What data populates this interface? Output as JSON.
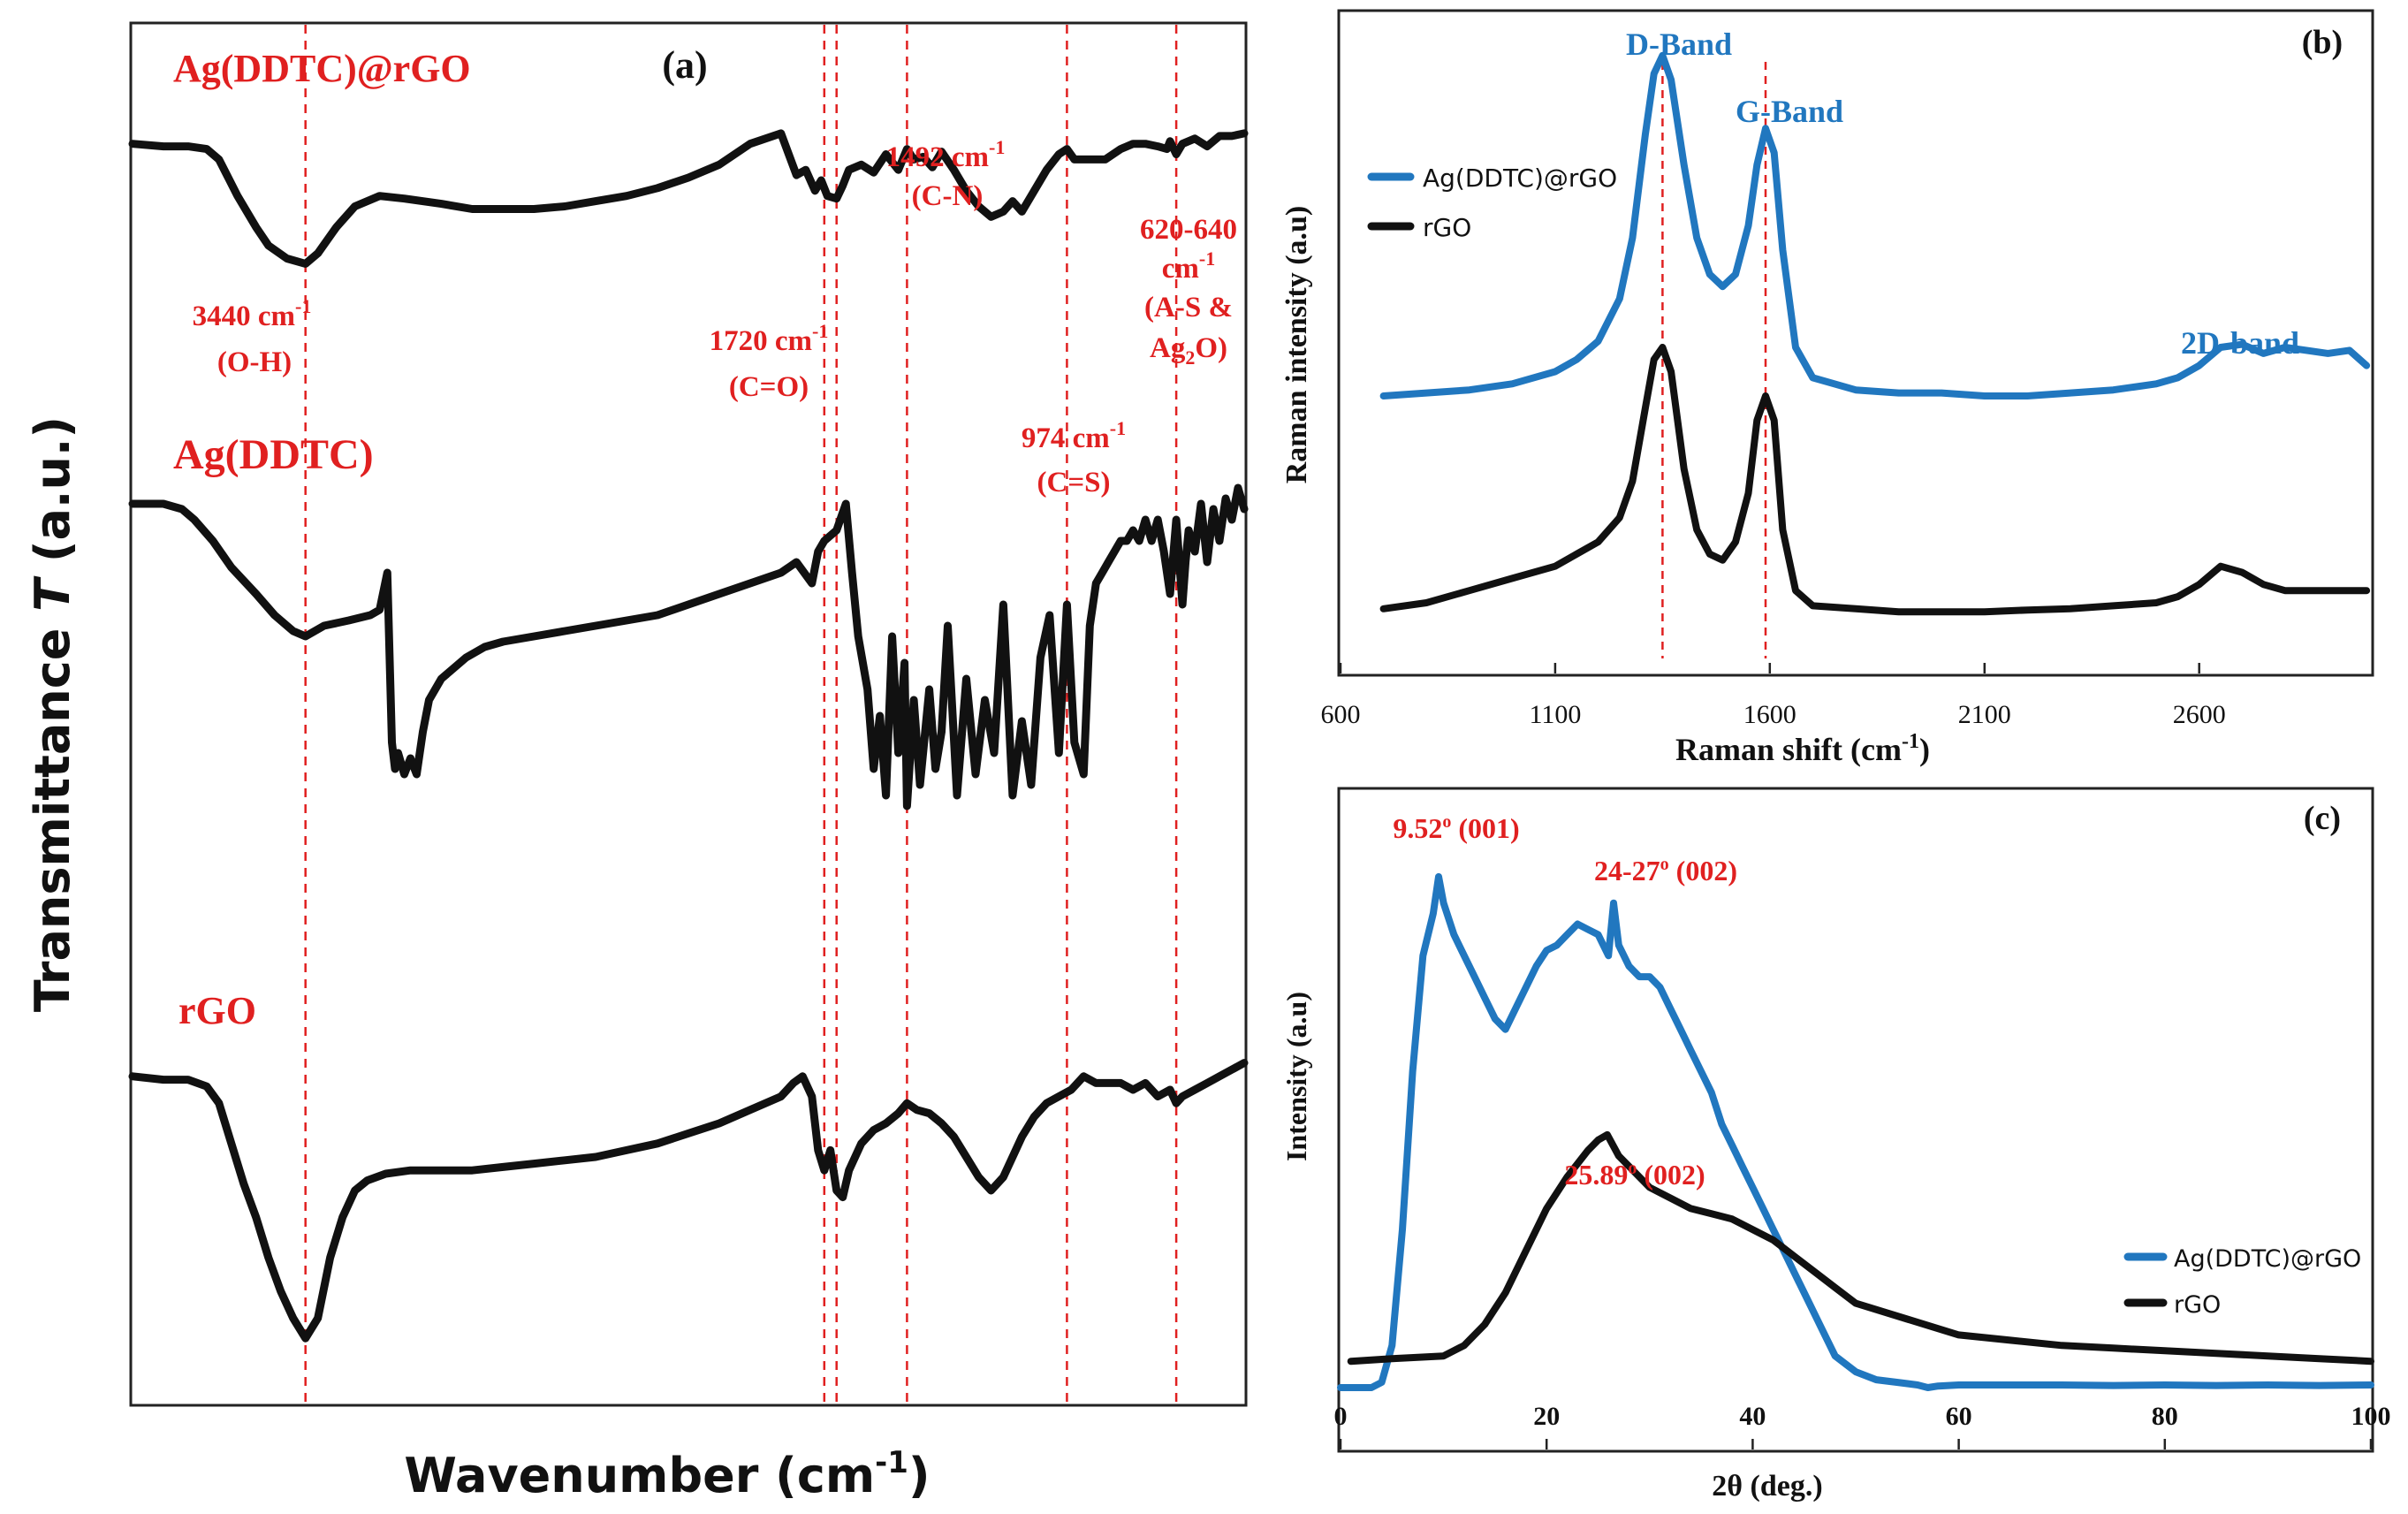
{
  "colors": {
    "blue": "#2177bf",
    "black": "#111111",
    "red": "#e02020",
    "axis": "#222222"
  },
  "chart_data": [
    {
      "id": "a",
      "type": "line",
      "panel_label": "(a)",
      "title": "",
      "xlabel": "Wavenumber (cm",
      "xlabel_sup": "-1",
      "xlabel_end": ")",
      "ylabel": "Transmittance ",
      "ylabel_italic": "T",
      "ylabel_end": " (a.u.)",
      "x_range": [
        4000,
        400
      ],
      "x_ticks_visible": false,
      "series": [
        {
          "name": "Ag(DDTC)@rGO",
          "color": "#111111",
          "x": [
            4000,
            3900,
            3820,
            3760,
            3720,
            3660,
            3600,
            3560,
            3500,
            3440,
            3400,
            3340,
            3280,
            3200,
            3120,
            3000,
            2900,
            2800,
            2700,
            2600,
            2500,
            2400,
            2300,
            2200,
            2100,
            2000,
            1900,
            1850,
            1820,
            1790,
            1770,
            1750,
            1720,
            1700,
            1680,
            1640,
            1600,
            1560,
            1520,
            1492,
            1470,
            1440,
            1410,
            1380,
            1340,
            1300,
            1260,
            1220,
            1180,
            1150,
            1120,
            1080,
            1040,
            1000,
            974,
            950,
            900,
            850,
            800,
            760,
            720,
            680,
            650,
            640,
            620,
            600,
            560,
            520,
            480,
            440,
            400
          ],
          "y": [
            94,
            93,
            93,
            92,
            88,
            74,
            62,
            55,
            50,
            48,
            52,
            62,
            70,
            74,
            73,
            71,
            69,
            69,
            69,
            70,
            72,
            74,
            77,
            81,
            86,
            94,
            98,
            82,
            84,
            76,
            80,
            74,
            73,
            78,
            84,
            86,
            83,
            90,
            84,
            92,
            88,
            89,
            85,
            91,
            84,
            76,
            70,
            66,
            68,
            72,
            68,
            76,
            84,
            90,
            92,
            88,
            88,
            88,
            92,
            94,
            94,
            93,
            92,
            95,
            90,
            94,
            96,
            93,
            97,
            97,
            98
          ]
        },
        {
          "name": "Ag(DDTC)",
          "color": "#111111",
          "x": [
            4000,
            3900,
            3840,
            3800,
            3740,
            3680,
            3600,
            3540,
            3480,
            3440,
            3380,
            3300,
            3230,
            3200,
            3175,
            3160,
            3150,
            3140,
            3120,
            3100,
            3080,
            3060,
            3040,
            3000,
            2960,
            2920,
            2860,
            2800,
            2700,
            2600,
            2500,
            2400,
            2300,
            2200,
            2100,
            2000,
            1900,
            1850,
            1800,
            1780,
            1760,
            1720,
            1690,
            1670,
            1650,
            1620,
            1600,
            1580,
            1560,
            1540,
            1520,
            1500,
            1492,
            1470,
            1450,
            1420,
            1400,
            1380,
            1360,
            1330,
            1300,
            1270,
            1240,
            1210,
            1180,
            1150,
            1120,
            1090,
            1060,
            1030,
            1000,
            974,
            950,
            920,
            900,
            880,
            860,
            840,
            820,
            800,
            780,
            760,
            740,
            720,
            700,
            680,
            660,
            640,
            620,
            600,
            590,
            580,
            560,
            540,
            520,
            500,
            480,
            460,
            440,
            420,
            400
          ],
          "y": [
            95,
            95,
            94,
            92,
            88,
            83,
            78,
            74,
            71,
            70,
            72,
            73,
            74,
            75,
            82,
            50,
            45,
            48,
            44,
            47,
            44,
            52,
            58,
            62,
            64,
            66,
            68,
            69,
            70,
            71,
            72,
            73,
            74,
            76,
            78,
            80,
            82,
            84,
            80,
            86,
            88,
            90,
            95,
            82,
            70,
            60,
            45,
            55,
            40,
            70,
            48,
            65,
            38,
            58,
            42,
            60,
            45,
            52,
            72,
            40,
            62,
            44,
            58,
            48,
            76,
            40,
            54,
            42,
            66,
            74,
            48,
            76,
            50,
            44,
            72,
            80,
            82,
            84,
            86,
            88,
            88,
            90,
            88,
            92,
            88,
            92,
            86,
            78,
            92,
            76,
            84,
            90,
            86,
            95,
            84,
            94,
            88,
            96,
            92,
            98,
            94
          ]
        },
        {
          "name": "rGO",
          "color": "#111111",
          "x": [
            4000,
            3900,
            3820,
            3760,
            3720,
            3680,
            3640,
            3600,
            3560,
            3520,
            3480,
            3440,
            3400,
            3360,
            3320,
            3280,
            3240,
            3180,
            3100,
            3000,
            2900,
            2800,
            2700,
            2600,
            2500,
            2400,
            2300,
            2200,
            2100,
            2000,
            1900,
            1860,
            1830,
            1800,
            1780,
            1760,
            1740,
            1720,
            1700,
            1680,
            1660,
            1640,
            1600,
            1560,
            1520,
            1492,
            1460,
            1420,
            1380,
            1340,
            1300,
            1260,
            1220,
            1180,
            1150,
            1120,
            1080,
            1040,
            1000,
            960,
            920,
            880,
            840,
            800,
            760,
            720,
            680,
            640,
            620,
            600,
            560,
            520,
            480,
            440,
            400
          ],
          "y": [
            94,
            93,
            93,
            91,
            86,
            74,
            62,
            52,
            40,
            30,
            22,
            16,
            22,
            40,
            52,
            60,
            63,
            65,
            66,
            66,
            66,
            67,
            68,
            69,
            70,
            72,
            74,
            77,
            80,
            84,
            88,
            92,
            94,
            88,
            72,
            66,
            72,
            60,
            58,
            66,
            70,
            74,
            78,
            80,
            83,
            86,
            84,
            83,
            80,
            76,
            70,
            64,
            60,
            64,
            70,
            76,
            82,
            86,
            88,
            90,
            94,
            92,
            92,
            92,
            90,
            92,
            88,
            90,
            86,
            88,
            90,
            92,
            94,
            96,
            98
          ]
        }
      ],
      "series_labels": [
        "Ag(DDTC)@rGO",
        "Ag(DDTC)",
        "rGO"
      ],
      "ref_lines_x": [
        3440,
        1760,
        1720,
        1492,
        974,
        620
      ],
      "annotations": [
        {
          "text": "1492 cm",
          "sup": "-1",
          "text2": "(C-N)"
        },
        {
          "text": "3440 cm",
          "sup": "-1",
          "text2": "(O-H)"
        },
        {
          "text": "1720 cm",
          "sup": "-1",
          "text2": "(C=O)"
        },
        {
          "text": "620-640",
          "text2": "cm",
          "sup": "-1",
          "text3": "(A-S &",
          "text4": "Ag",
          "sub": "2",
          "text4b": "O)"
        },
        {
          "text": "974 cm",
          "sup": "-1",
          "text2": "(C=S)"
        }
      ]
    },
    {
      "id": "b",
      "type": "line",
      "panel_label": "(b)",
      "xlabel": "Raman shift (cm",
      "xlabel_sup": "-1",
      "xlabel_end": ")",
      "ylabel": "Raman intensity (a.u)",
      "x_range": [
        600,
        3000
      ],
      "x_ticks": [
        600,
        1100,
        1600,
        2100,
        2600
      ],
      "y_range": [
        0,
        100
      ],
      "legend": {
        "placement": "top-left",
        "entries": [
          "Ag(DDTC)@rGO",
          "rGO"
        ]
      },
      "ref_lines_x": [
        1350,
        1590
      ],
      "series": [
        {
          "name": "Ag(DDTC)@rGO",
          "color": "#2177bf",
          "x": [
            700,
            800,
            900,
            1000,
            1100,
            1150,
            1200,
            1250,
            1280,
            1310,
            1330,
            1350,
            1370,
            1400,
            1430,
            1460,
            1490,
            1520,
            1550,
            1570,
            1590,
            1610,
            1630,
            1660,
            1700,
            1800,
            1900,
            2000,
            2100,
            2200,
            2300,
            2400,
            2500,
            2550,
            2600,
            2650,
            2700,
            2750,
            2800,
            2850,
            2900,
            2950,
            2990
          ],
          "y": [
            42,
            42.5,
            43,
            44,
            46,
            48,
            51,
            58,
            68,
            85,
            95,
            98,
            94,
            80,
            68,
            62,
            60,
            62,
            70,
            80,
            86,
            82,
            66,
            50,
            45,
            43,
            42.5,
            42.5,
            42,
            42,
            42.5,
            43,
            44,
            45,
            47,
            50,
            50.5,
            49,
            50,
            49.5,
            49,
            49.5,
            47
          ]
        },
        {
          "name": "rGO",
          "color": "#111111",
          "x": [
            700,
            800,
            900,
            1000,
            1100,
            1150,
            1200,
            1250,
            1280,
            1310,
            1330,
            1350,
            1370,
            1400,
            1430,
            1460,
            1490,
            1520,
            1550,
            1570,
            1590,
            1610,
            1630,
            1660,
            1700,
            1800,
            1900,
            2000,
            2100,
            2200,
            2300,
            2400,
            2500,
            2550,
            2600,
            2650,
            2700,
            2750,
            2800,
            2850,
            2900,
            2950,
            2990
          ],
          "y": [
            7,
            8,
            10,
            12,
            14,
            16,
            18,
            22,
            28,
            40,
            48,
            50,
            46,
            30,
            20,
            16,
            15,
            18,
            26,
            38,
            42,
            38,
            20,
            10,
            7.5,
            7,
            6.5,
            6.5,
            6.5,
            6.8,
            7,
            7.5,
            8,
            9,
            11,
            14,
            13,
            11,
            10,
            10,
            10,
            10,
            10
          ]
        }
      ],
      "annotations": [
        {
          "text": "D-Band"
        },
        {
          "text": "G-Band"
        },
        {
          "text": "2D-band"
        }
      ]
    },
    {
      "id": "c",
      "type": "line",
      "panel_label": "(c)",
      "xlabel": "2θ (deg.)",
      "ylabel": "Intensity (a.u)",
      "x_range": [
        0,
        100
      ],
      "x_ticks": [
        0,
        20,
        40,
        60,
        80,
        100
      ],
      "y_range": [
        0,
        100
      ],
      "legend": {
        "placement": "bottom-right",
        "entries": [
          "Ag(DDTC)@rGO",
          "rGO"
        ]
      },
      "series": [
        {
          "name": "Ag(DDTC)@rGO",
          "color": "#2177bf",
          "x": [
            0,
            3,
            4,
            5,
            6,
            7,
            8,
            9,
            9.52,
            10,
            11,
            12,
            13,
            14,
            15,
            16,
            17,
            18,
            19,
            20,
            21,
            22,
            23,
            24,
            25,
            26,
            26.5,
            27,
            28,
            29,
            30,
            31,
            32,
            33,
            34,
            35,
            36,
            37,
            38,
            39,
            40,
            41,
            42,
            43,
            44,
            45,
            46,
            47,
            48,
            50,
            52,
            54,
            56,
            57,
            58,
            60,
            62,
            65,
            70,
            75,
            80,
            85,
            90,
            95,
            100
          ],
          "y": [
            0,
            0,
            1,
            8,
            30,
            60,
            82,
            90,
            97,
            92,
            86,
            82,
            78,
            74,
            70,
            68,
            72,
            76,
            80,
            83,
            84,
            86,
            88,
            87,
            86,
            82,
            92,
            84,
            80,
            78,
            78,
            76,
            72,
            68,
            64,
            60,
            56,
            50,
            46,
            42,
            38,
            34,
            30,
            26,
            22,
            18,
            14,
            10,
            6,
            3,
            1.5,
            1,
            0.5,
            0,
            0.3,
            0.5,
            0.5,
            0.5,
            0.5,
            0.4,
            0.5,
            0.4,
            0.5,
            0.4,
            0.5
          ]
        },
        {
          "name": "rGO",
          "color": "#111111",
          "x": [
            1,
            5,
            10,
            12,
            14,
            16,
            18,
            20,
            22,
            24,
            25,
            25.89,
            27,
            28,
            30,
            32,
            34,
            36,
            38,
            40,
            42,
            44,
            46,
            48,
            50,
            55,
            60,
            65,
            70,
            75,
            80,
            85,
            90,
            95,
            100
          ],
          "y": [
            5,
            5.5,
            6,
            8,
            12,
            18,
            26,
            34,
            40,
            45,
            47,
            48,
            44,
            42,
            38,
            36,
            34,
            33,
            32,
            30,
            28,
            25,
            22,
            19,
            16,
            13,
            10,
            9,
            8,
            7.5,
            7,
            6.5,
            6,
            5.5,
            5
          ]
        }
      ],
      "annotations": [
        {
          "text": "9.52",
          "sup": "o",
          "text2": " (001)"
        },
        {
          "text": "24-27",
          "sup": "o",
          "text2": " (002)"
        },
        {
          "text": "25.89",
          "sup": "o",
          "text2": " (002)"
        }
      ]
    }
  ]
}
